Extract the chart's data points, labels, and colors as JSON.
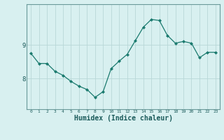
{
  "x": [
    0,
    1,
    2,
    3,
    4,
    5,
    6,
    7,
    8,
    9,
    10,
    11,
    12,
    13,
    14,
    15,
    16,
    17,
    18,
    19,
    20,
    21,
    22,
    23
  ],
  "y": [
    8.75,
    8.45,
    8.45,
    8.22,
    8.1,
    7.92,
    7.78,
    7.68,
    7.45,
    7.62,
    8.3,
    8.52,
    8.72,
    9.12,
    9.52,
    9.75,
    9.72,
    9.28,
    9.05,
    9.1,
    9.05,
    8.62,
    8.78,
    8.78
  ],
  "line_color": "#1a7a6e",
  "marker": "D",
  "marker_size": 2.0,
  "bg_color": "#d8f0f0",
  "grid_color": "#b8d8d8",
  "xlabel": "Humidex (Indice chaleur)",
  "xlabel_fontsize": 7,
  "ytick_labels": [
    "8",
    "9"
  ],
  "ytick_vals": [
    8,
    9
  ],
  "ylim": [
    7.1,
    10.2
  ],
  "xlim": [
    -0.5,
    23.5
  ],
  "xtick_fontsize": 4.5,
  "ytick_fontsize": 6.5
}
